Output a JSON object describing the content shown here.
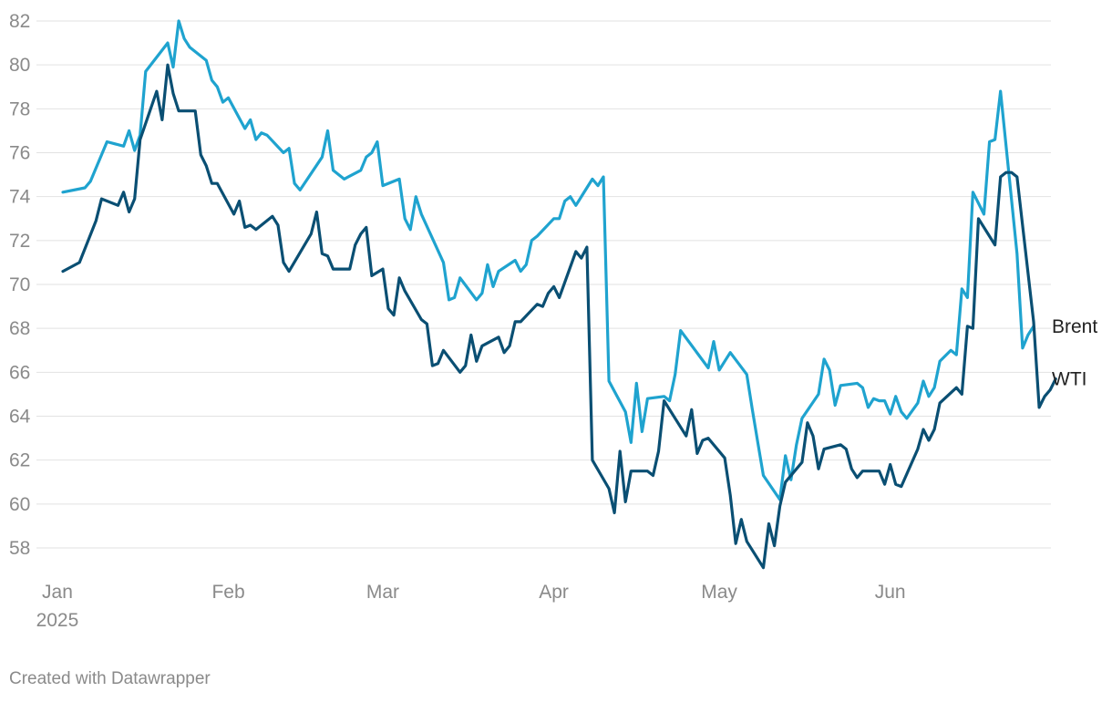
{
  "chart_data": {
    "type": "line",
    "credit": "Created with Datawrapper",
    "ylim": [
      57,
      82
    ],
    "yticks": [
      58,
      60,
      62,
      64,
      66,
      68,
      70,
      72,
      74,
      76,
      78,
      80,
      82
    ],
    "grid": true,
    "legend": "inline-right",
    "x_start": "2025-01-02",
    "x_end": "2025-06-27",
    "xticks": [
      {
        "date": "2025-01-01",
        "label": "Jan",
        "sublabel": "2025"
      },
      {
        "date": "2025-02-01",
        "label": "Feb",
        "sublabel": ""
      },
      {
        "date": "2025-03-01",
        "label": "Mar",
        "sublabel": ""
      },
      {
        "date": "2025-04-01",
        "label": "Apr",
        "sublabel": ""
      },
      {
        "date": "2025-05-01",
        "label": "May",
        "sublabel": ""
      },
      {
        "date": "2025-06-01",
        "label": "Jun",
        "sublabel": ""
      }
    ],
    "series": [
      {
        "name": "Brent",
        "color": "#1fa3cf",
        "points": [
          [
            "2025-01-02",
            74.2
          ],
          [
            "2025-01-06",
            74.4
          ],
          [
            "2025-01-07",
            74.7
          ],
          [
            "2025-01-08",
            75.3
          ],
          [
            "2025-01-09",
            75.9
          ],
          [
            "2025-01-10",
            76.5
          ],
          [
            "2025-01-13",
            76.3
          ],
          [
            "2025-01-14",
            77.0
          ],
          [
            "2025-01-15",
            76.1
          ],
          [
            "2025-01-16",
            76.8
          ],
          [
            "2025-01-17",
            79.7
          ],
          [
            "2025-01-21",
            81.0
          ],
          [
            "2025-01-22",
            79.9
          ],
          [
            "2025-01-23",
            82.0
          ],
          [
            "2025-01-24",
            81.2
          ],
          [
            "2025-01-25",
            80.8
          ],
          [
            "2025-01-28",
            80.2
          ],
          [
            "2025-01-29",
            79.3
          ],
          [
            "2025-01-30",
            79.0
          ],
          [
            "2025-01-31",
            78.3
          ],
          [
            "2025-02-01",
            78.5
          ],
          [
            "2025-02-04",
            77.1
          ],
          [
            "2025-02-05",
            77.5
          ],
          [
            "2025-02-06",
            76.6
          ],
          [
            "2025-02-07",
            76.9
          ],
          [
            "2025-02-08",
            76.8
          ],
          [
            "2025-02-11",
            76.0
          ],
          [
            "2025-02-12",
            76.2
          ],
          [
            "2025-02-13",
            74.6
          ],
          [
            "2025-02-14",
            74.3
          ],
          [
            "2025-02-18",
            75.8
          ],
          [
            "2025-02-19",
            77.0
          ],
          [
            "2025-02-20",
            75.2
          ],
          [
            "2025-02-21",
            75.0
          ],
          [
            "2025-02-22",
            74.8
          ],
          [
            "2025-02-25",
            75.2
          ],
          [
            "2025-02-26",
            75.8
          ],
          [
            "2025-02-27",
            76.0
          ],
          [
            "2025-02-28",
            76.5
          ],
          [
            "2025-03-01",
            74.5
          ],
          [
            "2025-03-04",
            74.8
          ],
          [
            "2025-03-05",
            73.0
          ],
          [
            "2025-03-06",
            72.5
          ],
          [
            "2025-03-07",
            74.0
          ],
          [
            "2025-03-08",
            73.2
          ],
          [
            "2025-03-12",
            71.0
          ],
          [
            "2025-03-13",
            69.3
          ],
          [
            "2025-03-14",
            69.4
          ],
          [
            "2025-03-15",
            70.3
          ],
          [
            "2025-03-18",
            69.3
          ],
          [
            "2025-03-19",
            69.6
          ],
          [
            "2025-03-20",
            70.9
          ],
          [
            "2025-03-21",
            69.9
          ],
          [
            "2025-03-22",
            70.6
          ],
          [
            "2025-03-25",
            71.1
          ],
          [
            "2025-03-26",
            70.6
          ],
          [
            "2025-03-27",
            70.9
          ],
          [
            "2025-03-28",
            72.0
          ],
          [
            "2025-03-29",
            72.2
          ],
          [
            "2025-04-01",
            73.0
          ],
          [
            "2025-04-02",
            73.0
          ],
          [
            "2025-04-03",
            73.8
          ],
          [
            "2025-04-04",
            74.0
          ],
          [
            "2025-04-05",
            73.6
          ],
          [
            "2025-04-08",
            74.8
          ],
          [
            "2025-04-09",
            74.5
          ],
          [
            "2025-04-10",
            74.9
          ],
          [
            "2025-04-11",
            65.6
          ],
          [
            "2025-04-14",
            64.2
          ],
          [
            "2025-04-15",
            62.8
          ],
          [
            "2025-04-16",
            65.5
          ],
          [
            "2025-04-17",
            63.3
          ],
          [
            "2025-04-18",
            64.8
          ],
          [
            "2025-04-21",
            64.9
          ],
          [
            "2025-04-22",
            64.7
          ],
          [
            "2025-04-23",
            65.9
          ],
          [
            "2025-04-24",
            67.9
          ],
          [
            "2025-04-29",
            66.2
          ],
          [
            "2025-04-30",
            67.4
          ],
          [
            "2025-05-01",
            66.1
          ],
          [
            "2025-05-02",
            66.5
          ],
          [
            "2025-05-03",
            66.9
          ],
          [
            "2025-05-06",
            65.9
          ],
          [
            "2025-05-07",
            64.3
          ],
          [
            "2025-05-08",
            62.8
          ],
          [
            "2025-05-09",
            61.3
          ],
          [
            "2025-05-12",
            60.2
          ],
          [
            "2025-05-13",
            62.2
          ],
          [
            "2025-05-14",
            61.1
          ],
          [
            "2025-05-15",
            62.7
          ],
          [
            "2025-05-16",
            63.9
          ],
          [
            "2025-05-19",
            65.0
          ],
          [
            "2025-05-20",
            66.6
          ],
          [
            "2025-05-21",
            66.1
          ],
          [
            "2025-05-22",
            64.5
          ],
          [
            "2025-05-23",
            65.4
          ],
          [
            "2025-05-26",
            65.5
          ],
          [
            "2025-05-27",
            65.3
          ],
          [
            "2025-05-28",
            64.4
          ],
          [
            "2025-05-29",
            64.8
          ],
          [
            "2025-05-30",
            64.7
          ],
          [
            "2025-05-31",
            64.7
          ],
          [
            "2025-06-01",
            64.1
          ],
          [
            "2025-06-02",
            64.9
          ],
          [
            "2025-06-03",
            64.2
          ],
          [
            "2025-06-04",
            63.9
          ],
          [
            "2025-06-06",
            64.6
          ],
          [
            "2025-06-07",
            65.6
          ],
          [
            "2025-06-08",
            64.9
          ],
          [
            "2025-06-09",
            65.3
          ],
          [
            "2025-06-10",
            66.5
          ],
          [
            "2025-06-12",
            67.0
          ],
          [
            "2025-06-13",
            66.8
          ],
          [
            "2025-06-14",
            69.8
          ],
          [
            "2025-06-15",
            69.4
          ],
          [
            "2025-06-16",
            74.2
          ],
          [
            "2025-06-18",
            73.2
          ],
          [
            "2025-06-19",
            76.5
          ],
          [
            "2025-06-20",
            76.6
          ],
          [
            "2025-06-21",
            78.8
          ],
          [
            "2025-06-24",
            71.4
          ],
          [
            "2025-06-25",
            67.1
          ],
          [
            "2025-06-26",
            67.7
          ],
          [
            "2025-06-26",
            67.7
          ],
          [
            "2025-06-27",
            68.1
          ]
        ]
      },
      {
        "name": "WTI",
        "color": "#0a4f73",
        "points": [
          [
            "2025-01-02",
            70.6
          ],
          [
            "2025-01-05",
            71.0
          ],
          [
            "2025-01-08",
            72.9
          ],
          [
            "2025-01-09",
            73.9
          ],
          [
            "2025-01-12",
            73.6
          ],
          [
            "2025-01-13",
            74.2
          ],
          [
            "2025-01-14",
            73.3
          ],
          [
            "2025-01-15",
            73.9
          ],
          [
            "2025-01-16",
            76.6
          ],
          [
            "2025-01-19",
            78.8
          ],
          [
            "2025-01-20",
            77.5
          ],
          [
            "2025-01-21",
            80.0
          ],
          [
            "2025-01-22",
            78.7
          ],
          [
            "2025-01-23",
            77.9
          ],
          [
            "2025-01-26",
            77.9
          ],
          [
            "2025-01-27",
            75.9
          ],
          [
            "2025-01-28",
            75.4
          ],
          [
            "2025-01-29",
            74.6
          ],
          [
            "2025-01-30",
            74.6
          ],
          [
            "2025-02-02",
            73.2
          ],
          [
            "2025-02-03",
            73.8
          ],
          [
            "2025-02-04",
            72.6
          ],
          [
            "2025-02-05",
            72.7
          ],
          [
            "2025-02-06",
            72.5
          ],
          [
            "2025-02-09",
            73.1
          ],
          [
            "2025-02-10",
            72.7
          ],
          [
            "2025-02-11",
            71.0
          ],
          [
            "2025-02-12",
            70.6
          ],
          [
            "2025-02-16",
            72.3
          ],
          [
            "2025-02-17",
            73.3
          ],
          [
            "2025-02-18",
            71.4
          ],
          [
            "2025-02-19",
            71.3
          ],
          [
            "2025-02-20",
            70.7
          ],
          [
            "2025-02-23",
            70.7
          ],
          [
            "2025-02-24",
            71.8
          ],
          [
            "2025-02-25",
            72.3
          ],
          [
            "2025-02-26",
            72.6
          ],
          [
            "2025-02-27",
            70.4
          ],
          [
            "2025-03-01",
            70.7
          ],
          [
            "2025-03-02",
            68.9
          ],
          [
            "2025-03-03",
            68.6
          ],
          [
            "2025-03-04",
            70.3
          ],
          [
            "2025-03-05",
            69.7
          ],
          [
            "2025-03-08",
            68.4
          ],
          [
            "2025-03-09",
            68.2
          ],
          [
            "2025-03-10",
            66.3
          ],
          [
            "2025-03-11",
            66.4
          ],
          [
            "2025-03-12",
            67.0
          ],
          [
            "2025-03-15",
            66.0
          ],
          [
            "2025-03-16",
            66.3
          ],
          [
            "2025-03-17",
            67.7
          ],
          [
            "2025-03-18",
            66.5
          ],
          [
            "2025-03-19",
            67.2
          ],
          [
            "2025-03-22",
            67.6
          ],
          [
            "2025-03-23",
            66.9
          ],
          [
            "2025-03-24",
            67.2
          ],
          [
            "2025-03-25",
            68.3
          ],
          [
            "2025-03-26",
            68.3
          ],
          [
            "2025-03-29",
            69.1
          ],
          [
            "2025-03-30",
            69.0
          ],
          [
            "2025-03-31",
            69.6
          ],
          [
            "2025-04-01",
            69.9
          ],
          [
            "2025-04-02",
            69.4
          ],
          [
            "2025-04-05",
            71.5
          ],
          [
            "2025-04-06",
            71.2
          ],
          [
            "2025-04-07",
            71.7
          ],
          [
            "2025-04-08",
            62.0
          ],
          [
            "2025-04-11",
            60.7
          ],
          [
            "2025-04-12",
            59.6
          ],
          [
            "2025-04-13",
            62.4
          ],
          [
            "2025-04-14",
            60.1
          ],
          [
            "2025-04-15",
            61.5
          ],
          [
            "2025-04-18",
            61.5
          ],
          [
            "2025-04-19",
            61.3
          ],
          [
            "2025-04-20",
            62.4
          ],
          [
            "2025-04-21",
            64.7
          ],
          [
            "2025-04-25",
            63.1
          ],
          [
            "2025-04-26",
            64.3
          ],
          [
            "2025-04-27",
            62.3
          ],
          [
            "2025-04-28",
            62.9
          ],
          [
            "2025-04-29",
            63.0
          ],
          [
            "2025-05-02",
            62.1
          ],
          [
            "2025-05-03",
            60.4
          ],
          [
            "2025-05-04",
            58.2
          ],
          [
            "2025-05-05",
            59.3
          ],
          [
            "2025-05-06",
            58.3
          ],
          [
            "2025-05-09",
            57.1
          ],
          [
            "2025-05-10",
            59.1
          ],
          [
            "2025-05-11",
            58.1
          ],
          [
            "2025-05-12",
            59.9
          ],
          [
            "2025-05-13",
            61.0
          ],
          [
            "2025-05-16",
            61.9
          ],
          [
            "2025-05-17",
            63.7
          ],
          [
            "2025-05-18",
            63.1
          ],
          [
            "2025-05-19",
            61.6
          ],
          [
            "2025-05-20",
            62.5
          ],
          [
            "2025-05-23",
            62.7
          ],
          [
            "2025-05-24",
            62.5
          ],
          [
            "2025-05-25",
            61.6
          ],
          [
            "2025-05-26",
            61.2
          ],
          [
            "2025-05-27",
            61.5
          ],
          [
            "2025-05-30",
            61.5
          ],
          [
            "2025-05-31",
            60.9
          ],
          [
            "2025-06-01",
            61.8
          ],
          [
            "2025-06-02",
            60.9
          ],
          [
            "2025-06-03",
            60.8
          ],
          [
            "2025-06-06",
            62.5
          ],
          [
            "2025-06-07",
            63.4
          ],
          [
            "2025-06-08",
            62.9
          ],
          [
            "2025-06-09",
            63.4
          ],
          [
            "2025-06-10",
            64.6
          ],
          [
            "2025-06-13",
            65.3
          ],
          [
            "2025-06-14",
            65.0
          ],
          [
            "2025-06-15",
            68.1
          ],
          [
            "2025-06-16",
            68.0
          ],
          [
            "2025-06-17",
            73.0
          ],
          [
            "2025-06-20",
            71.8
          ],
          [
            "2025-06-21",
            74.9
          ],
          [
            "2025-06-22",
            75.1
          ],
          [
            "2025-06-23",
            75.1
          ],
          [
            "2025-06-24",
            74.9
          ],
          [
            "2025-06-27",
            68.3
          ],
          [
            "2025-06-28",
            64.4
          ],
          [
            "2025-06-29",
            64.9
          ],
          [
            "2025-06-30",
            65.2
          ],
          [
            "2025-07-01",
            65.7
          ]
        ]
      }
    ]
  }
}
